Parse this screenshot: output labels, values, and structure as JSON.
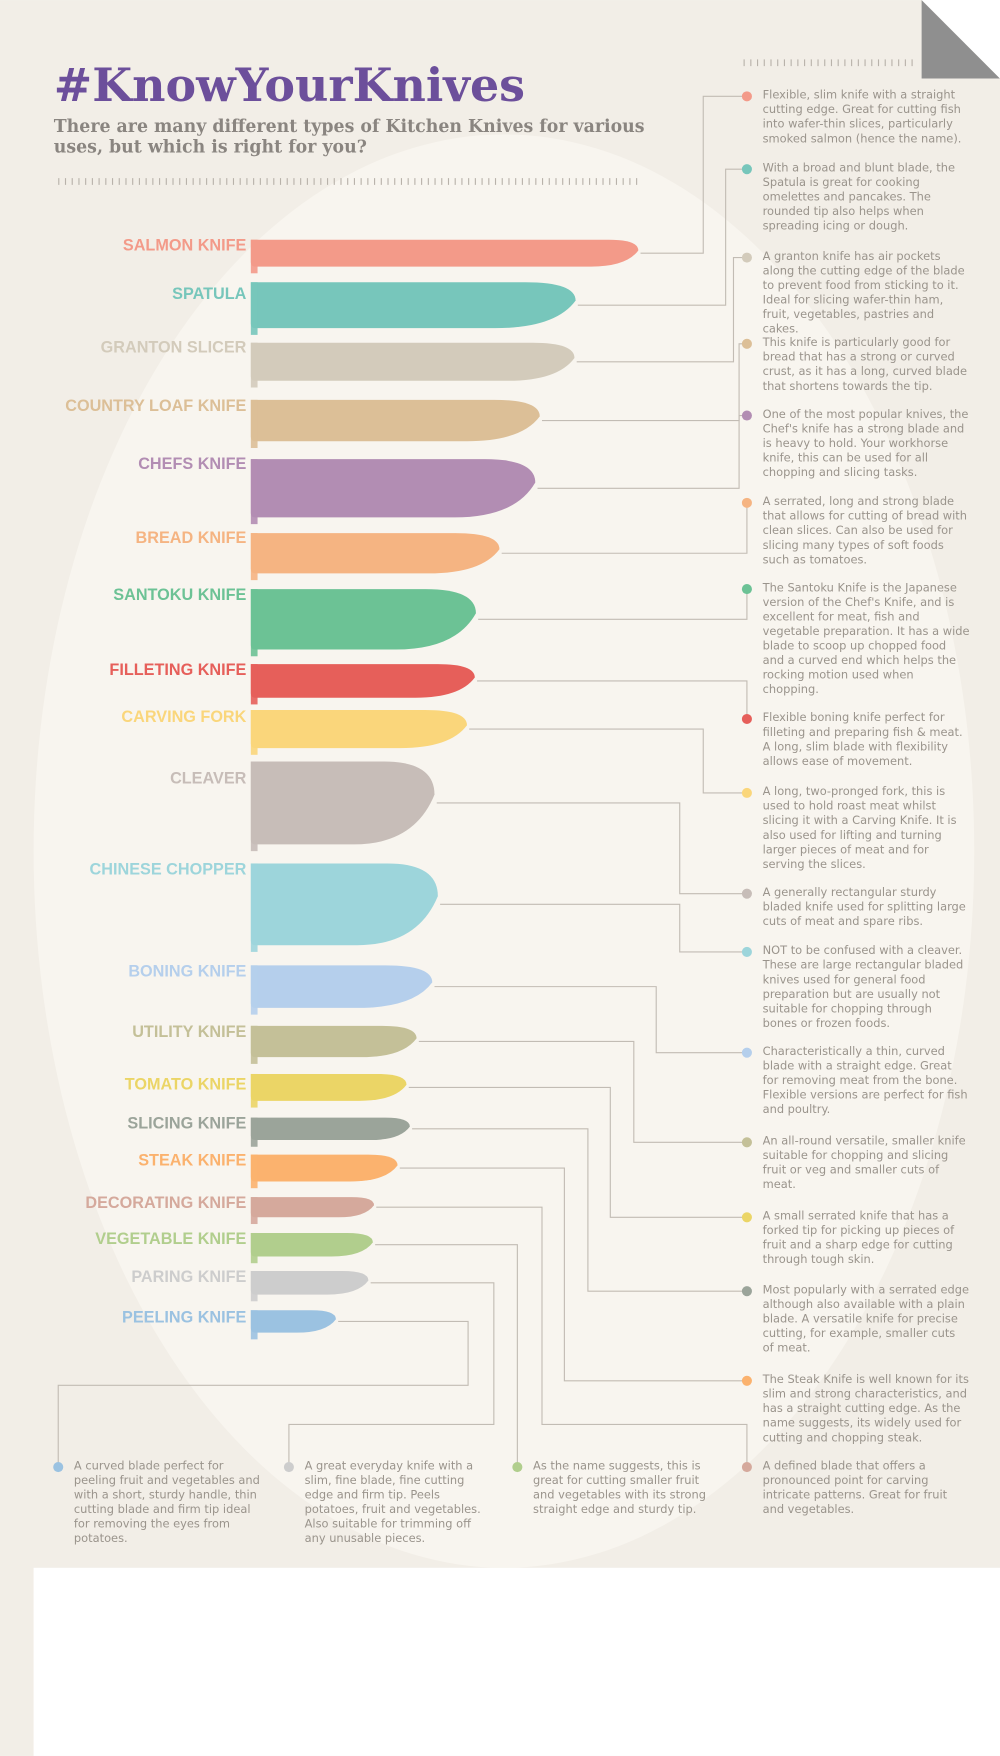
{
  "header": {
    "title": "#KnowYourKnives",
    "subtitle": "There are many different types of Kitchen Knives for various uses, but which is right for you?"
  },
  "knives": [
    {
      "name": "SALMON KNIFE",
      "color": "#f39a89",
      "description": "Flexible, slim knife with a straight cutting edge. Great for cutting fish into wafer-thin slices, particularly smoked salmon (hence the name)."
    },
    {
      "name": "SPATULA",
      "color": "#77c6bb",
      "description": "With a broad and blunt blade, the Spatula is great for cooking omelettes and pancakes. The rounded tip also helps when spreading icing or dough."
    },
    {
      "name": "GRANTON SLICER",
      "color": "#d3cbbb",
      "description": "A granton knife has air pockets along the cutting edge of the blade to prevent food from sticking to it. Ideal for slicing wafer-thin ham, fruit, vegetables, pastries and cakes."
    },
    {
      "name": "COUNTRY LOAF KNIFE",
      "color": "#dcbf97",
      "description": "This knife is particularly good for bread that has a strong or curved crust, as it has a long, curved blade that shortens towards the tip."
    },
    {
      "name": "CHEFS KNIFE",
      "color": "#b28db3",
      "description": "One of the most popular knives, the Chef's knife has a strong blade and is heavy to hold. Your workhorse knife, this can be used for all chopping and slicing tasks."
    },
    {
      "name": "BREAD KNIFE",
      "color": "#f5b482",
      "description": "A serrated, long and strong blade that allows for cutting of bread with clean slices. Can also be used for slicing many types of soft foods such as tomatoes."
    },
    {
      "name": "SANTOKU KNIFE",
      "color": "#6cc295",
      "description": "The Santoku Knife is the Japanese version of the Chef's Knife, and is excellent for meat, fish and vegetable preparation. It has a wide blade to scoop up chopped food and a curved end which helps the rocking motion used when chopping."
    },
    {
      "name": "FILLETING KNIFE",
      "color": "#e65f5a",
      "description": "Flexible boning knife perfect for filleting and preparing fish & meat. A long, slim blade with flexibility allows ease of movement."
    },
    {
      "name": "CARVING FORK",
      "color": "#fad67b",
      "description": "A long, two-pronged fork, this is used to hold roast meat whilst slicing it with a Carving Knife. It is also used for lifting and turning larger pieces of meat and for serving the slices."
    },
    {
      "name": "CLEAVER",
      "color": "#c7bdb8",
      "description": "A generally rectangular sturdy bladed knife used for splitting large cuts of meat and spare ribs."
    },
    {
      "name": "CHINESE CHOPPER",
      "color": "#9dd5db",
      "description": "NOT to be confused with a cleaver. These are large rectangular bladed knives used for general food preparation but are usually not suitable for chopping through bones or frozen foods."
    },
    {
      "name": "BONING KNIFE",
      "color": "#b5cfec",
      "description": "Characteristically a thin, curved blade with a straight edge. Great for removing meat from the bone. Flexible versions are perfect for fish and poultry."
    },
    {
      "name": "UTILITY KNIFE",
      "color": "#c4c098",
      "description": "An all-round versatile, smaller knife suitable for chopping and slicing fruit or veg and smaller cuts of meat."
    },
    {
      "name": "TOMATO KNIFE",
      "color": "#ebd566",
      "description": "A small serrated knife that has a forked tip for picking up pieces of fruit and a sharp edge for cutting through tough skin."
    },
    {
      "name": "SLICING KNIFE",
      "color": "#9ba49a",
      "description": "Most popularly with a serrated edge although also available with a plain blade. A versatile knife for precise cutting, for example, smaller cuts of meat."
    },
    {
      "name": "STEAK KNIFE",
      "color": "#fbb26e",
      "description": "The Steak Knife is well known for its slim and strong characteristics, and has a straight cutting edge. As the name suggests, its widely used for cutting and chopping steak."
    },
    {
      "name": "DECORATING KNIFE",
      "color": "#d5a99c",
      "description": "A defined blade that offers a pronounced point for carving intricate patterns. Great for fruit and vegetables."
    },
    {
      "name": "VEGETABLE KNIFE",
      "color": "#b1ce8d",
      "description": "As the name suggests, this is great for cutting smaller fruit and vegetables with its strong straight edge and sturdy tip."
    },
    {
      "name": "PARING KNIFE",
      "color": "#cdcdcd",
      "description": "A great everyday knife with a slim, fine blade, fine cutting edge and firm tip. Peels potatoes, fruit and vegetables. Also suitable for trimming off any unusable pieces."
    },
    {
      "name": "PEELING KNIFE",
      "color": "#9bc2e1",
      "description": "A curved blade perfect for peeling fruit and vegetables and with a short, sturdy handle, thin cutting blade and firm tip ideal for removing the eyes from potatoes."
    }
  ]
}
